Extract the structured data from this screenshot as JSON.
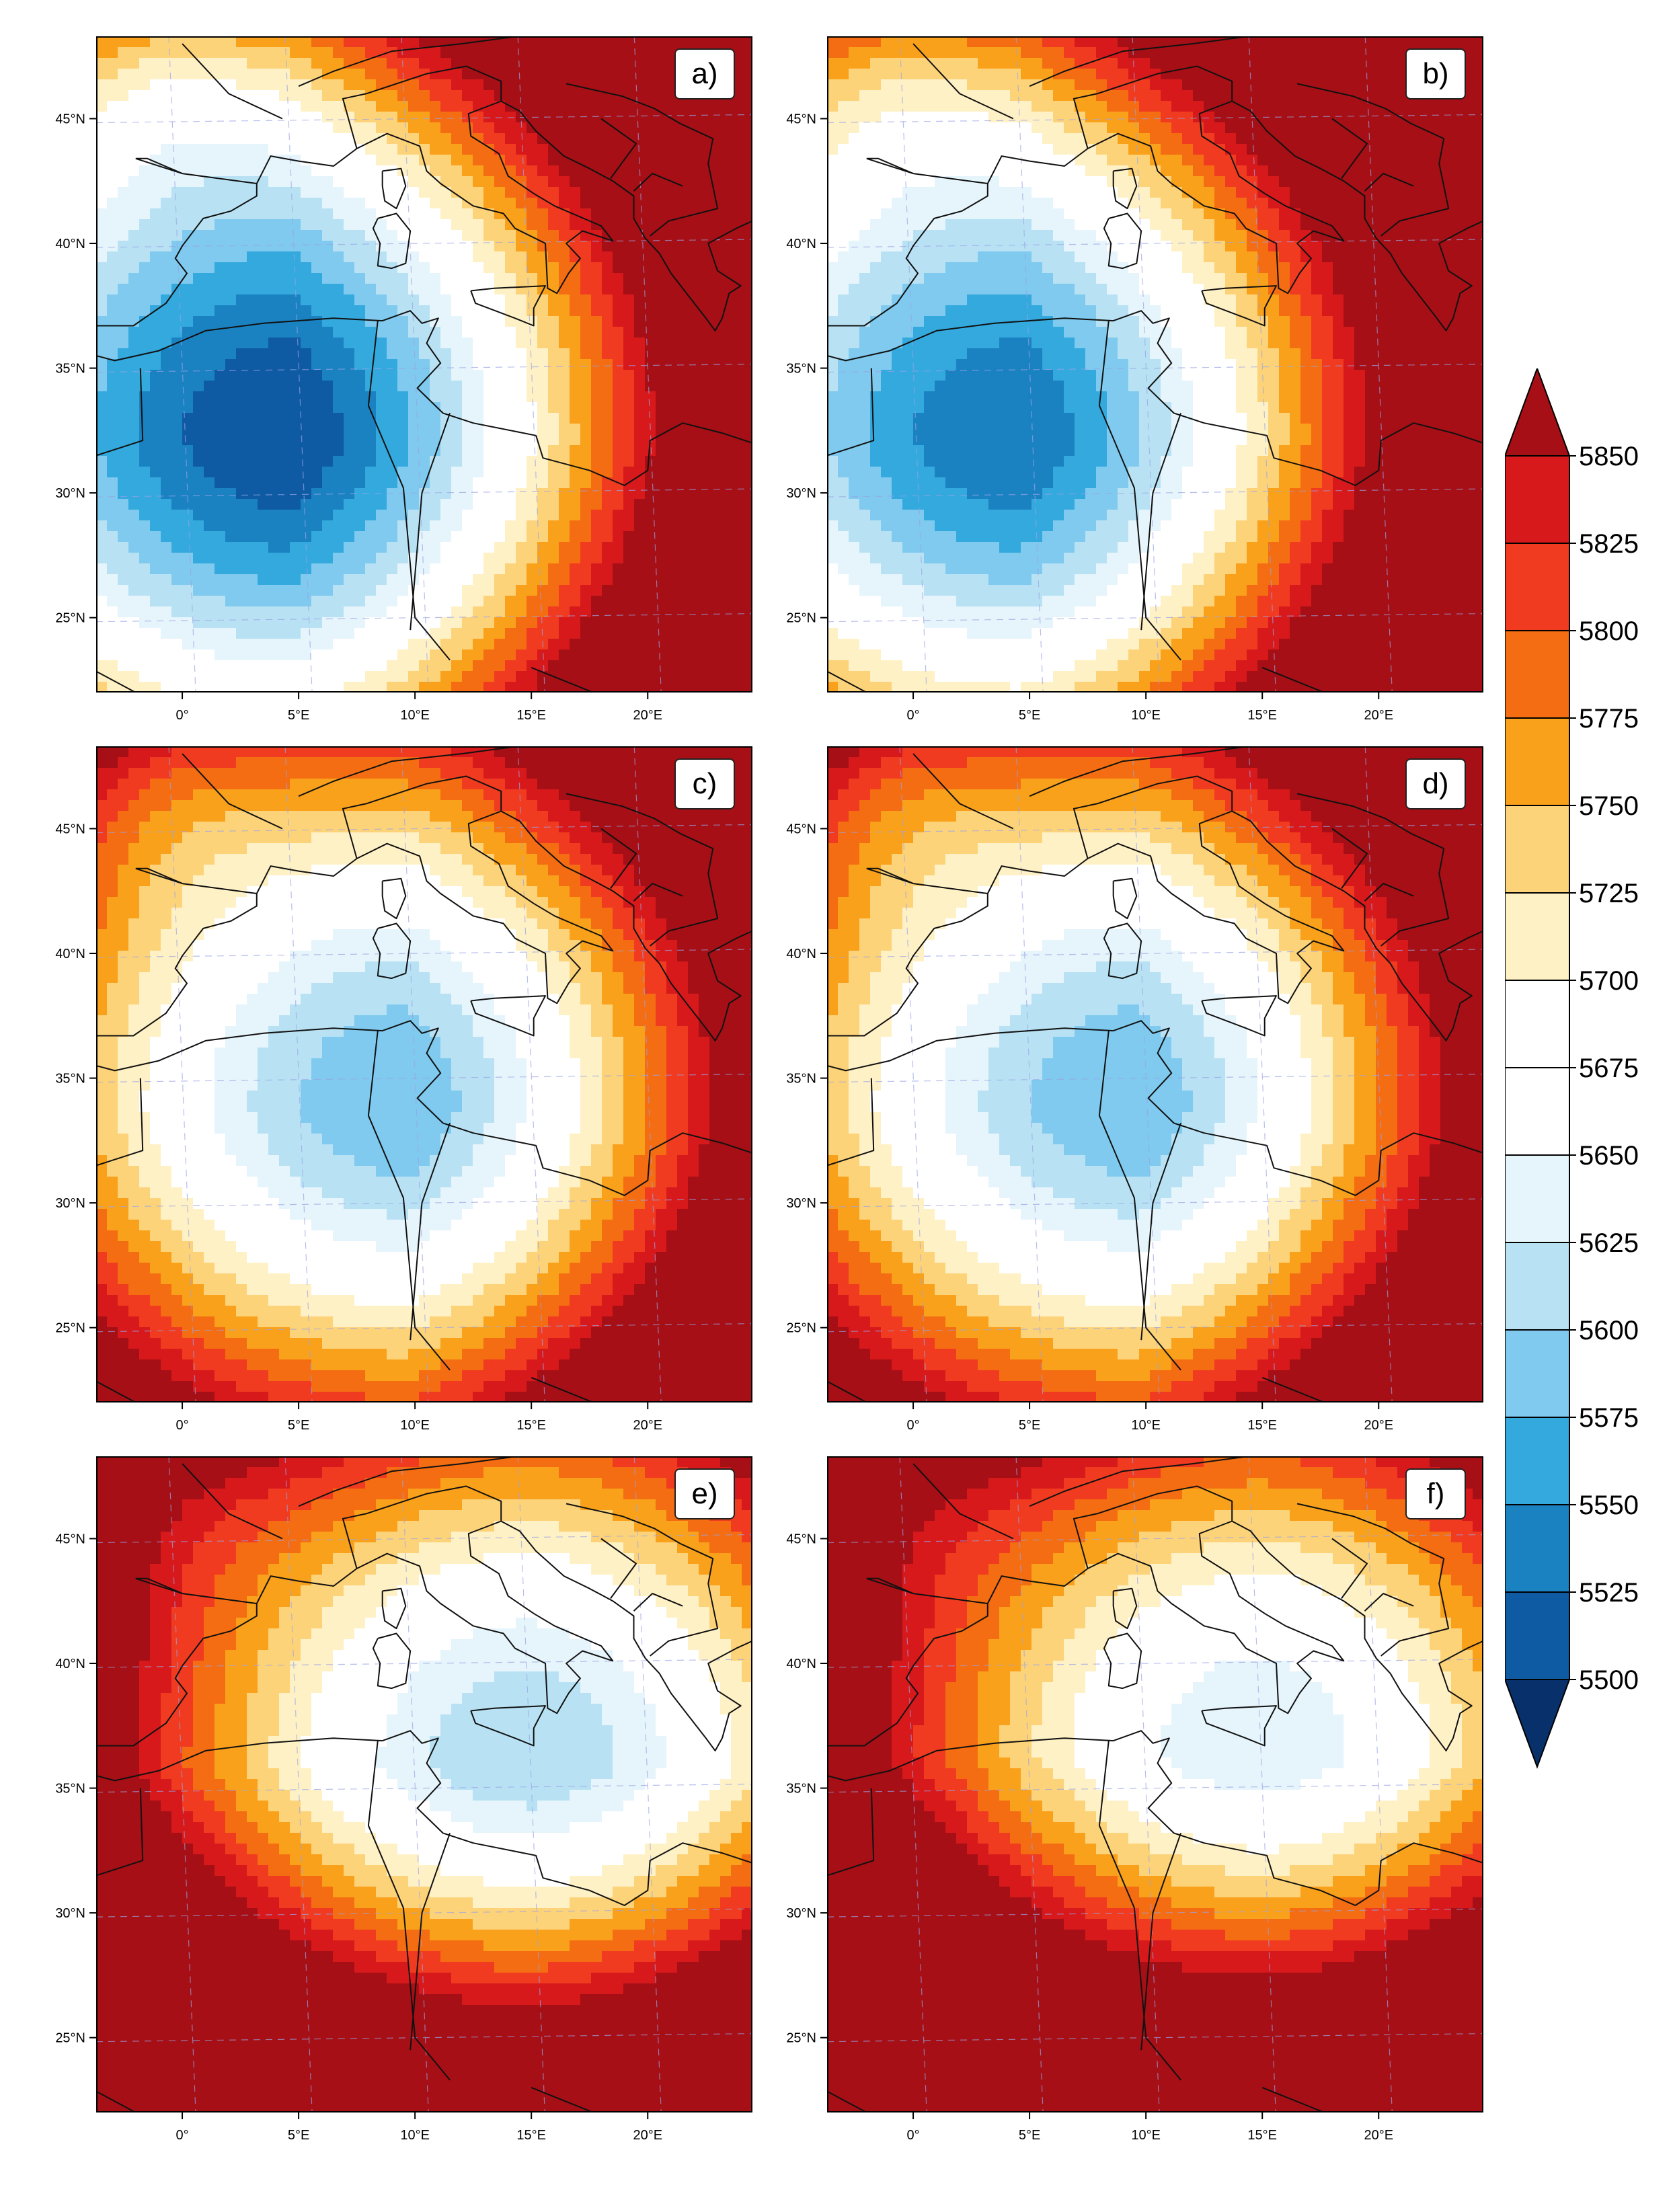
{
  "figure": {
    "title": "",
    "units_label": ""
  },
  "axes": {
    "lat_ticks": [
      "45°N",
      "40°N",
      "35°N",
      "30°N",
      "25°N"
    ],
    "lon_ticks": [
      "0°",
      "5°E",
      "10°E",
      "15°E",
      "20°E"
    ]
  },
  "colorbar": {
    "levels": [
      5850,
      5825,
      5800,
      5775,
      5750,
      5725,
      5700,
      5675,
      5650,
      5625,
      5600,
      5575,
      5550,
      5525,
      5500
    ],
    "level_labels": [
      "5850",
      "5825",
      "5800",
      "5775",
      "5750",
      "5725",
      "5700",
      "5675",
      "5650",
      "5625",
      "5600",
      "5575",
      "5550",
      "5525",
      "5500"
    ],
    "colors_top_to_bottom": [
      "#a50f15",
      "#d7191c",
      "#f03b20",
      "#f46d12",
      "#f9a11b",
      "#fdd37a",
      "#fff1c6",
      "#ffffff",
      "#ffffff",
      "#e6f4fb",
      "#b8e2f4",
      "#7fcaee",
      "#33a9dd",
      "#1b82c2",
      "#0e5ba3",
      "#08306b"
    ]
  },
  "panels": [
    {
      "label": "a)",
      "low": {
        "lon": 4.5,
        "lat": 32.3,
        "min": 5500
      },
      "high_color_region": "southeast"
    },
    {
      "label": "b)",
      "low": {
        "lon": 4.5,
        "lat": 32.3,
        "min": 5525
      },
      "high_color_region": "southeast"
    },
    {
      "label": "c)",
      "low": {
        "lon": 9.5,
        "lat": 34.0,
        "min": 5575
      },
      "high_color_region": "southeast"
    },
    {
      "label": "d)",
      "low": {
        "lon": 9.5,
        "lat": 34.0,
        "min": 5575
      },
      "high_color_region": "southeast"
    },
    {
      "label": "e)",
      "low": {
        "lon": 15.0,
        "lat": 36.0,
        "min": 5600
      },
      "high_color_region": "south"
    },
    {
      "label": "f)",
      "low": {
        "lon": 15.0,
        "lat": 36.5,
        "min": 5625
      },
      "high_color_region": "south"
    }
  ]
}
